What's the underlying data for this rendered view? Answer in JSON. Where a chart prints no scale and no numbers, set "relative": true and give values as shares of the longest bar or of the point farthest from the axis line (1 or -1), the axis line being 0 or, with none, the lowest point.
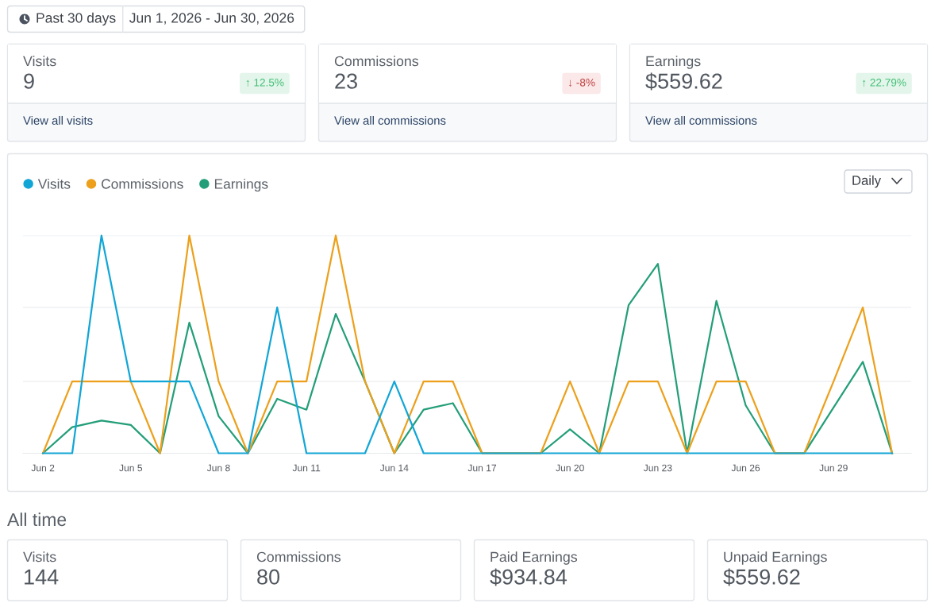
{
  "chart_data": [
    {
      "type": "other",
      "annotations": [
        "Past 30 days",
        "Jun 1, 2026 - Jun 30, 2026"
      ]
    },
    {
      "type": "other",
      "categories": [
        "↑ 12.5%",
        "↓ -8%",
        "↑ 22.79%"
      ],
      "colors": [
        "#e4f5eb",
        "#fbe8e8",
        "#e4f5eb"
      ],
      "annotations": [
        "Visits",
        "9",
        "View all visits",
        "Commissions",
        "23",
        "View all commissions",
        "Earnings",
        "$559.62",
        "View all commissions"
      ]
    },
    {
      "type": "line",
      "relative": true,
      "legend": "top left",
      "annotations": [
        "Daily"
      ],
      "ref_lines": [
        {
          "axis": "y",
          "value": 0.33,
          "color": "#eceef1"
        },
        {
          "axis": "y",
          "value": 0.67,
          "color": "#eceef1"
        },
        {
          "axis": "y",
          "value": 1,
          "color": "#eceef1"
        }
      ],
      "categories": [
        "Jun 2",
        null,
        null,
        "Jun 5",
        null,
        null,
        "Jun 8",
        null,
        null,
        "Jun 11",
        null,
        null,
        "Jun 14",
        null,
        null,
        "Jun 17",
        null,
        null,
        "Jun 20",
        null,
        null,
        "Jun 23",
        null,
        null,
        "Jun 26",
        null,
        null,
        "Jun 29",
        null,
        null
      ],
      "series": [
        {
          "name": "Visits",
          "color": "#12a6d6",
          "values": [
            0,
            0,
            1,
            0.33,
            0.33,
            0.33,
            0,
            0,
            0.67,
            0,
            0,
            0,
            0.33,
            0,
            0,
            0,
            0,
            0,
            0,
            0,
            0,
            0,
            0,
            0,
            0,
            0,
            0,
            0,
            0,
            0
          ]
        },
        {
          "name": "Commissions",
          "color": "#eca01c",
          "values": [
            0,
            0.33,
            0.33,
            0.33,
            0,
            1,
            0.33,
            0,
            0.33,
            0.33,
            1,
            0.33,
            0,
            0.33,
            0.33,
            0,
            0,
            0,
            0.33,
            0,
            0.33,
            0.33,
            0,
            0.33,
            0.33,
            0,
            0,
            0.33,
            0.67,
            0
          ]
        },
        {
          "name": "Earnings",
          "color": "#239e78",
          "values": [
            0,
            0.12,
            0.15,
            0.13,
            0,
            0.6,
            0.17,
            0,
            0.25,
            0.2,
            0.64,
            0.33,
            0,
            0.2,
            0.23,
            0,
            0,
            0,
            0.11,
            0,
            0.68,
            0.87,
            0,
            0.7,
            0.22,
            0,
            0,
            0.21,
            0.42,
            0
          ]
        }
      ]
    },
    {
      "type": "other",
      "title": "All time",
      "categories": [
        "Visits",
        "Commissions",
        "Paid Earnings",
        "Unpaid Earnings"
      ],
      "annotations": [
        "144",
        "80",
        "$934.84",
        "$559.62"
      ]
    }
  ]
}
